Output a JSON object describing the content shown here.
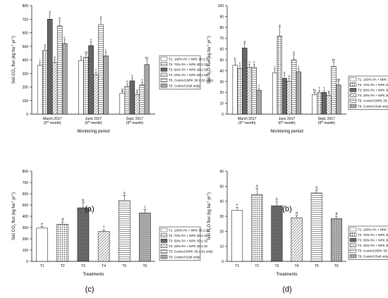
{
  "panel_labels": [
    "(a)",
    "(b)",
    "(c)",
    "(d)"
  ],
  "legend": {
    "entries": [
      "T1: 100% PA + NPK 30:1:32",
      "T2: 70% PA + NPK 30:1:32",
      "T3: 50% PA + NPK 30:1:32",
      "T4: 25% PA + NPK 30:1:32",
      "T5: Control (NPK 30:1:32 only)",
      "T6: Control (Soil only)"
    ],
    "entries_ab_t5": "T5: Control (NPK 30:1:32 only)",
    "fills": [
      "#ffffff",
      "#c8c8c8",
      "#707070",
      "#e6e6e6",
      "#f2f2f2",
      "#a8a8a8"
    ]
  },
  "chart_data": [
    {
      "type": "bar",
      "panel": "(a)",
      "ylabel": "Soil CO2 flux (kg ha-1 yr-1)",
      "ylabel_parts": [
        "Soil CO",
        "2",
        " flux (kg ha",
        "-1",
        " yr",
        "-1",
        ")"
      ],
      "xlabel": "Monitoring period",
      "ylim": [
        0,
        800
      ],
      "yticks": [
        0,
        100,
        200,
        300,
        400,
        500,
        600,
        700,
        800
      ],
      "categories": [
        "March 2017",
        "June 2017",
        "Sept. 2017"
      ],
      "category_sublabels": [
        "(3rd month)",
        "(6th month)",
        "(9th month)"
      ],
      "series": [
        {
          "name": "T1",
          "values": [
            360,
            395,
            155
          ],
          "errors": [
            20,
            15,
            15
          ],
          "letters": [
            "f",
            "e",
            "g"
          ]
        },
        {
          "name": "T2",
          "values": [
            470,
            420,
            205
          ],
          "errors": [
            20,
            20,
            20
          ],
          "letters": [
            "d",
            "cd",
            "e"
          ]
        },
        {
          "name": "T3",
          "values": [
            700,
            505,
            245
          ],
          "errors": [
            40,
            30,
            25
          ],
          "letters": [
            "a",
            "c",
            "c"
          ]
        },
        {
          "name": "T4",
          "values": [
            380,
            290,
            145
          ],
          "errors": [
            25,
            20,
            15
          ],
          "letters": [
            "e",
            "f",
            "g"
          ]
        },
        {
          "name": "T5",
          "values": [
            650,
            660,
            215
          ],
          "errors": [
            40,
            40,
            20
          ],
          "letters": [
            "b",
            "a",
            "f"
          ]
        },
        {
          "name": "T6",
          "values": [
            520,
            430,
            365
          ],
          "errors": [
            30,
            25,
            35
          ],
          "letters": [
            "c",
            "c",
            "bc"
          ]
        }
      ]
    },
    {
      "type": "bar",
      "panel": "(b)",
      "ylabel": "Soil N2O flux (kg ha-1 yr-1)",
      "ylabel_parts": [
        "Soil N",
        "2",
        "O flux (kg ha",
        "-1",
        " yr",
        "-1",
        ")"
      ],
      "xlabel": "Monitoring period",
      "ylim": [
        0,
        100
      ],
      "yticks": [
        0,
        10,
        20,
        30,
        40,
        50,
        60,
        70,
        80,
        90,
        100
      ],
      "categories": [
        "March 2017",
        "June 2017",
        "Sept. 2017"
      ],
      "category_sublabels": [
        "(3rd month)",
        "(6th month)",
        "(9th month)"
      ],
      "series": [
        {
          "name": "T1",
          "values": [
            45,
            38,
            18
          ],
          "errors": [
            4,
            4,
            2
          ],
          "letters": [
            "b",
            "c",
            "fg"
          ]
        },
        {
          "name": "T2",
          "values": [
            42,
            72,
            20
          ],
          "errors": [
            3,
            8,
            2
          ],
          "letters": [
            "c",
            "a",
            "f"
          ]
        },
        {
          "name": "T3",
          "values": [
            61,
            33,
            20
          ],
          "errors": [
            4,
            3,
            2
          ],
          "letters": [
            "a",
            "d",
            "f"
          ]
        },
        {
          "name": "T4",
          "values": [
            43,
            30,
            17
          ],
          "errors": [
            3,
            3,
            2
          ],
          "letters": [
            "c",
            "e",
            "g"
          ]
        },
        {
          "name": "T5",
          "values": [
            43,
            50,
            44
          ],
          "errors": [
            3,
            5,
            4
          ],
          "letters": [
            "c",
            "b",
            "bc"
          ]
        },
        {
          "name": "T6",
          "values": [
            22,
            39,
            27
          ],
          "errors": [
            2,
            3,
            3
          ],
          "letters": [
            "f",
            "c",
            "de"
          ]
        }
      ]
    },
    {
      "type": "bar",
      "panel": "(c)",
      "ylabel": "Soil CO2 flux (kg ha-1 yr-1)",
      "ylabel_parts": [
        "Soil CO",
        "2",
        " flux (kg ha",
        "-1",
        " yr",
        "-1",
        ")"
      ],
      "xlabel": "Treatments",
      "ylim": [
        0,
        800
      ],
      "yticks": [
        0,
        100,
        200,
        300,
        400,
        500,
        600,
        700,
        800
      ],
      "categories": [
        "T1",
        "T2",
        "T3",
        "T4",
        "T5",
        "T6"
      ],
      "values": [
        295,
        330,
        475,
        265,
        540,
        430
      ],
      "errors": [
        15,
        20,
        45,
        15,
        45,
        30
      ],
      "letters": [
        "e",
        "d",
        "b",
        "f",
        "a",
        "c"
      ]
    },
    {
      "type": "bar",
      "panel": "(d)",
      "ylabel": "Soil N2O flux (kg ha-1 yr-1)",
      "ylabel_parts": [
        "Soil N",
        "2",
        "O flux (kg ha",
        "-1",
        " yr",
        "-1",
        ")"
      ],
      "xlabel": "Treatments",
      "ylim": [
        0,
        60
      ],
      "yticks": [
        0,
        10,
        20,
        30,
        40,
        50,
        60
      ],
      "categories": [
        "T1",
        "T2",
        "T3",
        "T4",
        "T5",
        "T6"
      ],
      "values": [
        34,
        44.5,
        37,
        29,
        45.5,
        28.5
      ],
      "errors": [
        2,
        4,
        2.5,
        1.5,
        2,
        1.5
      ],
      "letters": [
        "c",
        "a",
        "b",
        "d",
        "a",
        "d"
      ]
    }
  ]
}
